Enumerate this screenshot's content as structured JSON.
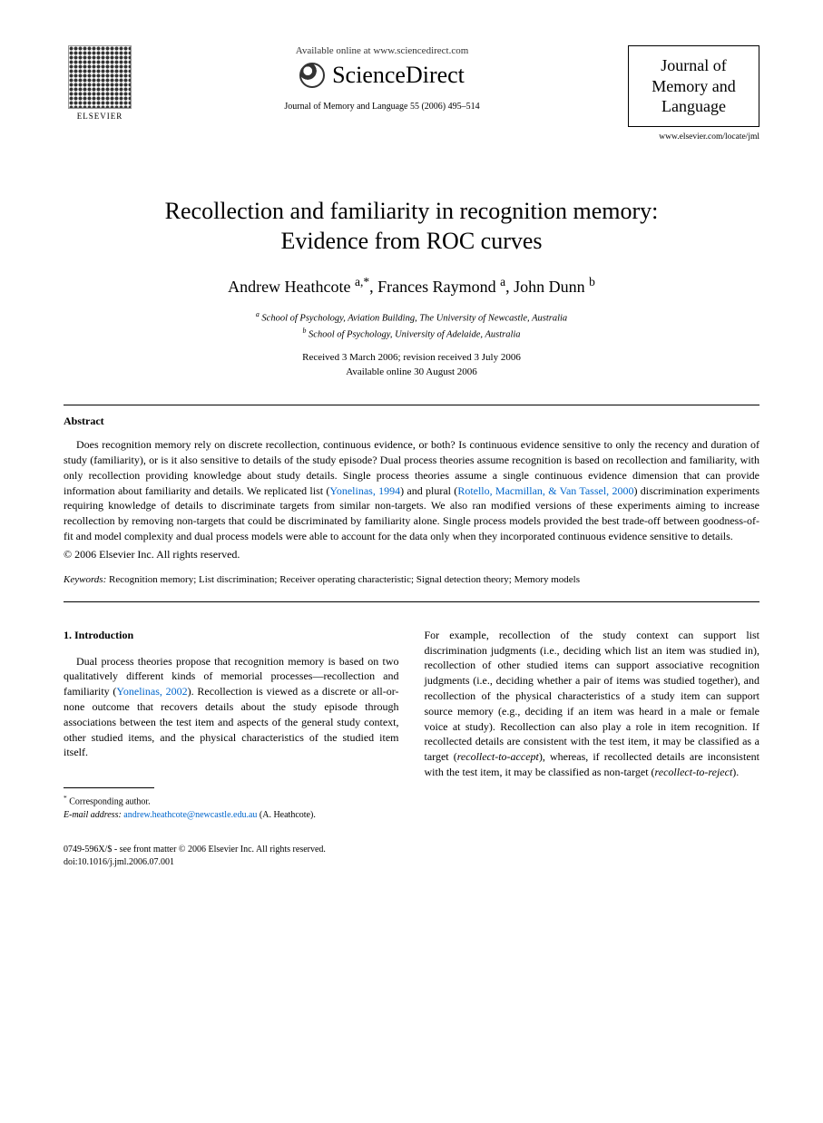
{
  "header": {
    "elsevier_label": "ELSEVIER",
    "available_online": "Available online at www.sciencedirect.com",
    "sciencedirect": "ScienceDirect",
    "citation": "Journal of Memory and Language 55 (2006) 495–514",
    "journal_name_line1": "Journal of",
    "journal_name_line2": "Memory and",
    "journal_name_line3": "Language",
    "journal_url": "www.elsevier.com/locate/jml"
  },
  "title": {
    "line1": "Recollection and familiarity in recognition memory:",
    "line2": "Evidence from ROC curves"
  },
  "authors": {
    "a1_name": "Andrew Heathcote",
    "a1_sup": "a,*",
    "a2_name": "Frances Raymond",
    "a2_sup": "a",
    "a3_name": "John Dunn",
    "a3_sup": "b"
  },
  "affiliations": {
    "a": "School of Psychology, Aviation Building, The University of Newcastle, Australia",
    "b": "School of Psychology, University of Adelaide, Australia"
  },
  "dates": {
    "received": "Received 3 March 2006; revision received 3 July 2006",
    "available": "Available online 30 August 2006"
  },
  "abstract": {
    "heading": "Abstract",
    "p1_pre": "Does recognition memory rely on discrete recollection, continuous evidence, or both? Is continuous evidence sensitive to only the recency and duration of study (familiarity), or is it also sensitive to details of the study episode? Dual process theories assume recognition is based on recollection and familiarity, with only recollection providing knowledge about study details. Single process theories assume a single continuous evidence dimension that can provide information about familiarity and details. We replicated list (",
    "cite1": "Yonelinas, 1994",
    "p1_mid1": ") and plural (",
    "cite2": "Rotello, Macmillan, & Van Tassel, 2000",
    "p1_post": ") discrimination experiments requiring knowledge of details to discriminate targets from similar non-targets. We also ran modified versions of these experiments aiming to increase recollection by removing non-targets that could be discriminated by familiarity alone. Single process models provided the best trade-off between goodness-of-fit and model complexity and dual process models were able to account for the data only when they incorporated continuous evidence sensitive to details.",
    "copyright": "© 2006 Elsevier Inc. All rights reserved."
  },
  "keywords": {
    "label": "Keywords:",
    "text": "Recognition memory; List discrimination; Receiver operating characteristic; Signal detection theory; Memory models"
  },
  "intro": {
    "heading": "1. Introduction",
    "col1_pre": "Dual process theories propose that recognition memory is based on two qualitatively different kinds of memorial processes—recollection and familiarity (",
    "col1_cite": "Yonelinas, 2002",
    "col1_post": "). Recollection is viewed as a discrete or all-or-none outcome that recovers details about the study episode through associations between the test item and aspects of the general study context, other studied items, and the physical characteristics of the studied item itself.",
    "col2_pre": "For example, recollection of the study context can support list discrimination judgments (i.e., deciding which list an item was studied in), recollection of other studied items can support associative recognition judgments (i.e., deciding whether a pair of items was studied together), and recollection of the physical characteristics of a study item can support source memory (e.g., deciding if an item was heard in a male or female voice at study). Recollection can also play a role in item recognition. If recollected details are consistent with the test item, it may be classified as a target (",
    "col2_ital1": "recollect-to-accept",
    "col2_mid": "), whereas, if recollected details are inconsistent with the test item, it may be classified as non-target (",
    "col2_ital2": "recollect-to-reject",
    "col2_post": ")."
  },
  "footnote": {
    "corresponding": "Corresponding author.",
    "email_label": "E-mail address:",
    "email": "andrew.heathcote@newcastle.edu.au",
    "email_suffix": "(A. Heathcote)."
  },
  "bottom": {
    "line1": "0749-596X/$ - see front matter © 2006 Elsevier Inc. All rights reserved.",
    "line2": "doi:10.1016/j.jml.2006.07.001"
  },
  "colors": {
    "text": "#000000",
    "link": "#0066cc",
    "background": "#ffffff"
  }
}
